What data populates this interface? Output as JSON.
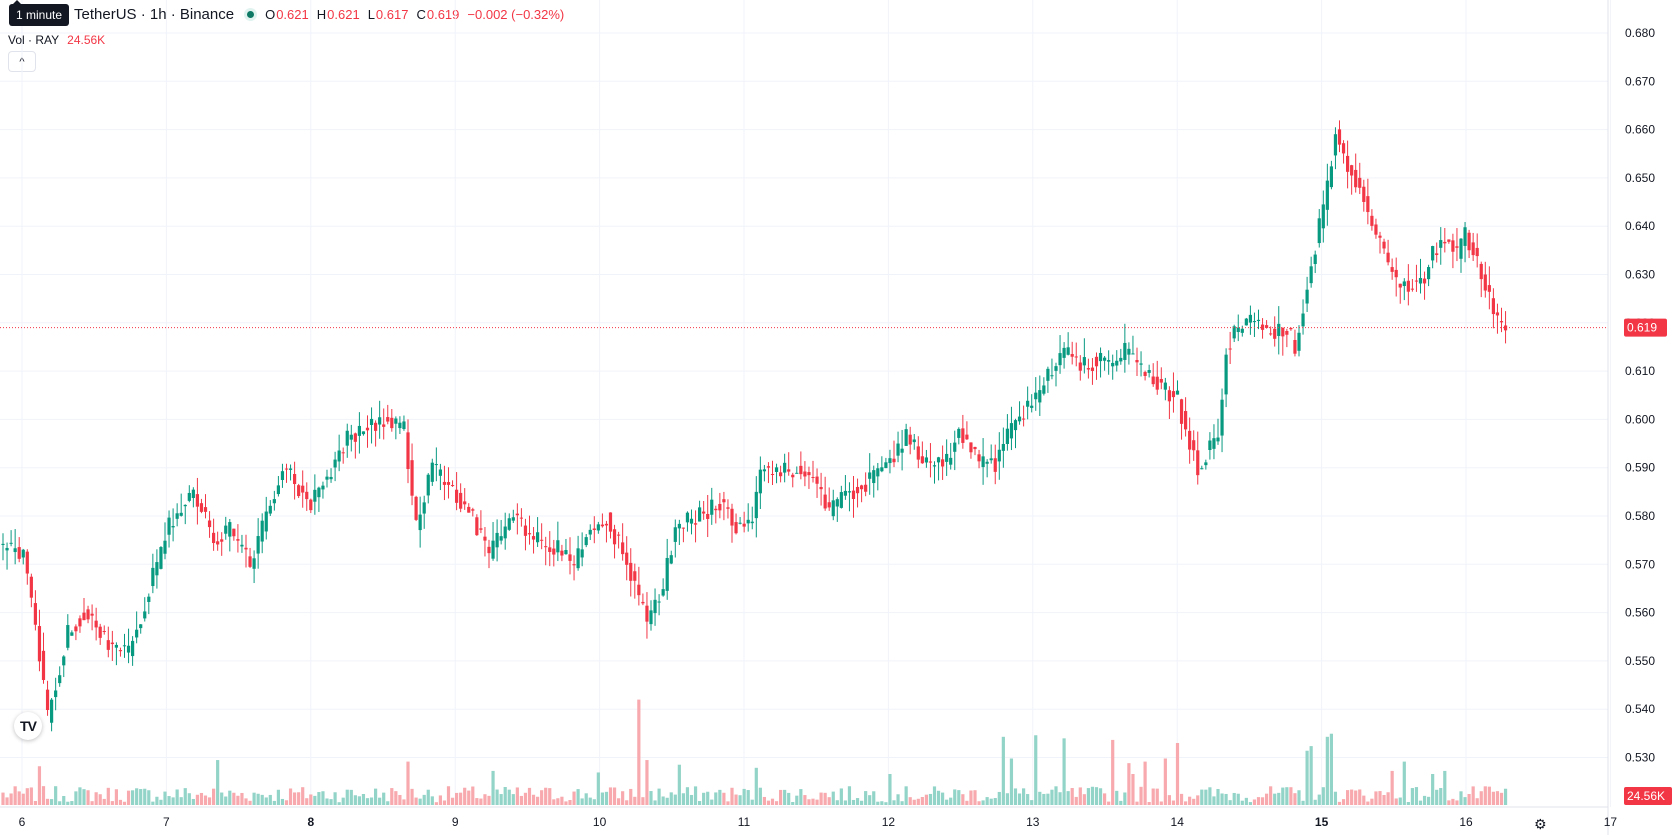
{
  "header": {
    "title": "TetherUS · 1h · Binance",
    "tooltip": "1 minute",
    "ohlc": {
      "o_label": "O",
      "o_value": "0.621",
      "h_label": "H",
      "h_value": "0.621",
      "l_label": "L",
      "l_value": "0.617",
      "c_label": "C",
      "c_value": "0.619",
      "change": "−0.002 (−0.32%)"
    },
    "volume_label": "Vol · RAY",
    "volume_value": "24.56K",
    "collapse_icon": "chevron-up-icon"
  },
  "footer": {
    "logo_text": "TV",
    "settings_icon": "gear-icon"
  },
  "colors": {
    "up": "#089981",
    "down": "#f23645",
    "vol_up": "#93d4c8",
    "vol_down": "#f7a9ad",
    "grid": "#f0f3fa",
    "text": "#131722"
  },
  "chart_data": {
    "type": "candlestick",
    "y_axis": {
      "min": 0.52,
      "max": 0.68,
      "ticks": [
        "0.680",
        "0.670",
        "0.660",
        "0.650",
        "0.640",
        "0.630",
        "0.620",
        "0.610",
        "0.600",
        "0.590",
        "0.580",
        "0.570",
        "0.560",
        "0.550",
        "0.540",
        "0.530"
      ]
    },
    "x_ticks": [
      {
        "label": "6",
        "bold": false
      },
      {
        "label": "7",
        "bold": false
      },
      {
        "label": "8",
        "bold": true
      },
      {
        "label": "9",
        "bold": false
      },
      {
        "label": "10",
        "bold": false
      },
      {
        "label": "11",
        "bold": false
      },
      {
        "label": "12",
        "bold": false
      },
      {
        "label": "13",
        "bold": false
      },
      {
        "label": "14",
        "bold": false
      },
      {
        "label": "15",
        "bold": true
      },
      {
        "label": "16",
        "bold": false
      },
      {
        "label": "17",
        "bold": false
      }
    ],
    "current_price": 0.619,
    "current_price_label": "0.619",
    "current_volume_label": "24.56K",
    "volume_max": 50000,
    "close_path": [
      [
        0,
        0.574
      ],
      [
        6,
        0.572
      ],
      [
        9,
        0.558
      ],
      [
        12,
        0.538
      ],
      [
        17,
        0.556
      ],
      [
        21,
        0.56
      ],
      [
        27,
        0.553
      ],
      [
        32,
        0.552
      ],
      [
        36,
        0.562
      ],
      [
        42,
        0.578
      ],
      [
        48,
        0.585
      ],
      [
        51,
        0.58
      ],
      [
        53,
        0.575
      ],
      [
        57,
        0.577
      ],
      [
        62,
        0.57
      ],
      [
        67,
        0.583
      ],
      [
        70,
        0.59
      ],
      [
        77,
        0.583
      ],
      [
        82,
        0.59
      ],
      [
        86,
        0.596
      ],
      [
        91,
        0.598
      ],
      [
        96,
        0.6
      ],
      [
        100,
        0.598
      ],
      [
        103,
        0.578
      ],
      [
        107,
        0.59
      ],
      [
        112,
        0.585
      ],
      [
        117,
        0.58
      ],
      [
        121,
        0.572
      ],
      [
        127,
        0.58
      ],
      [
        132,
        0.575
      ],
      [
        138,
        0.573
      ],
      [
        142,
        0.57
      ],
      [
        146,
        0.577
      ],
      [
        150,
        0.58
      ],
      [
        156,
        0.568
      ],
      [
        160,
        0.558
      ],
      [
        164,
        0.565
      ],
      [
        167,
        0.578
      ],
      [
        173,
        0.58
      ],
      [
        178,
        0.583
      ],
      [
        182,
        0.578
      ],
      [
        186,
        0.58
      ],
      [
        188,
        0.59
      ],
      [
        193,
        0.589
      ],
      [
        198,
        0.59
      ],
      [
        202,
        0.587
      ],
      [
        205,
        0.58
      ],
      [
        209,
        0.585
      ],
      [
        213,
        0.586
      ],
      [
        217,
        0.589
      ],
      [
        220,
        0.591
      ],
      [
        224,
        0.596
      ],
      [
        229,
        0.591
      ],
      [
        234,
        0.591
      ],
      [
        237,
        0.598
      ],
      [
        242,
        0.591
      ],
      [
        246,
        0.591
      ],
      [
        251,
        0.6
      ],
      [
        253,
        0.602
      ],
      [
        257,
        0.605
      ],
      [
        260,
        0.611
      ],
      [
        264,
        0.614
      ],
      [
        268,
        0.611
      ],
      [
        272,
        0.613
      ],
      [
        275,
        0.611
      ],
      [
        278,
        0.614
      ],
      [
        283,
        0.609
      ],
      [
        287,
        0.607
      ],
      [
        291,
        0.604
      ],
      [
        293,
        0.598
      ],
      [
        296,
        0.59
      ],
      [
        299,
        0.594
      ],
      [
        301,
        0.596
      ],
      [
        303,
        0.614
      ],
      [
        305,
        0.618
      ],
      [
        309,
        0.62
      ],
      [
        314,
        0.618
      ],
      [
        318,
        0.619
      ],
      [
        320,
        0.615
      ],
      [
        324,
        0.632
      ],
      [
        326,
        0.64
      ],
      [
        328,
        0.648
      ],
      [
        330,
        0.66
      ],
      [
        333,
        0.652
      ],
      [
        336,
        0.648
      ],
      [
        339,
        0.64
      ],
      [
        342,
        0.634
      ],
      [
        345,
        0.628
      ],
      [
        349,
        0.628
      ],
      [
        352,
        0.63
      ],
      [
        354,
        0.635
      ],
      [
        357,
        0.638
      ],
      [
        360,
        0.634
      ],
      [
        362,
        0.638
      ],
      [
        364,
        0.635
      ],
      [
        366,
        0.63
      ],
      [
        369,
        0.622
      ],
      [
        371,
        0.619
      ]
    ],
    "volume_spikes": {
      "9": 12500,
      "53": 14500,
      "100": 14000,
      "121": 11000,
      "147": 10500,
      "157": 34000,
      "159": 14500,
      "167": 13000,
      "186": 12000,
      "219": 10000,
      "247": 22000,
      "249": 15000,
      "255": 22500,
      "262": 21500,
      "274": 21000,
      "278": 13500,
      "279": 10000,
      "282": 14000,
      "287": 15000,
      "290": 20000,
      "322": 17500,
      "323": 19000,
      "327": 22000,
      "328": 23000,
      "343": 11000,
      "346": 14000,
      "353": 10000,
      "356": 11000
    }
  }
}
